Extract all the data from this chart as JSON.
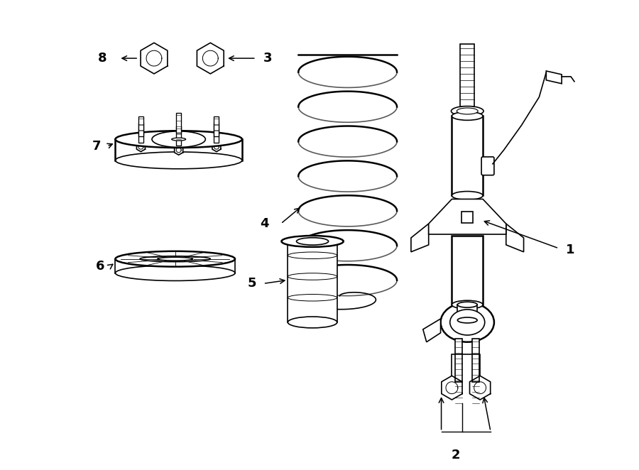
{
  "bg_color": "#ffffff",
  "line_color": "#000000",
  "label_color": "#000000",
  "fig_width": 9.0,
  "fig_height": 6.62,
  "dpi": 100,
  "label_fontsize": 13,
  "arrow_color": "#000000"
}
